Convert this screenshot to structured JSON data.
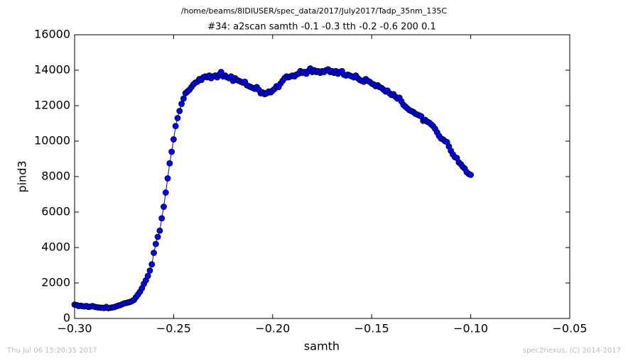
{
  "chart_data": {
    "type": "line",
    "header": "/home/beams/8IDIUSER/spec_data/2017/July2017/Tadp_35nm_135C",
    "title": "#34: a2scan  samth -0.1 -0.3  tth -0.2 -0.6  200 0.1",
    "xlabel": "samth",
    "ylabel": "pind3",
    "footer_left": "Thu Jul 06 15:20:35 2017",
    "footer_right": "spec2nexus, (C) 2014-2017",
    "color": "#0000ff",
    "marker": "circle",
    "xlim": [
      -0.3,
      -0.05
    ],
    "xticks": [
      {
        "value": -0.3,
        "label": "−0.30"
      },
      {
        "value": -0.25,
        "label": "−0.25"
      },
      {
        "value": -0.2,
        "label": "−0.20"
      },
      {
        "value": -0.15,
        "label": "−0.15"
      },
      {
        "value": -0.1,
        "label": "−0.10"
      },
      {
        "value": -0.05,
        "label": "−0.05"
      }
    ],
    "ylim": [
      0,
      16000
    ],
    "yticks": [
      0,
      2000,
      4000,
      6000,
      8000,
      10000,
      12000,
      14000,
      16000
    ],
    "x": [
      -0.3,
      -0.299,
      -0.298,
      -0.297,
      -0.296,
      -0.295,
      -0.294,
      -0.293,
      -0.292,
      -0.291,
      -0.29,
      -0.289,
      -0.288,
      -0.287,
      -0.286,
      -0.285,
      -0.284,
      -0.283,
      -0.282,
      -0.281,
      -0.28,
      -0.279,
      -0.278,
      -0.277,
      -0.276,
      -0.275,
      -0.274,
      -0.273,
      -0.272,
      -0.271,
      -0.27,
      -0.269,
      -0.268,
      -0.267,
      -0.266,
      -0.265,
      -0.264,
      -0.263,
      -0.262,
      -0.261,
      -0.26,
      -0.259,
      -0.258,
      -0.257,
      -0.256,
      -0.255,
      -0.254,
      -0.253,
      -0.252,
      -0.251,
      -0.25,
      -0.249,
      -0.248,
      -0.247,
      -0.246,
      -0.245,
      -0.244,
      -0.243,
      -0.242,
      -0.241,
      -0.24,
      -0.239,
      -0.238,
      -0.237,
      -0.236,
      -0.235,
      -0.234,
      -0.233,
      -0.232,
      -0.231,
      -0.23,
      -0.229,
      -0.228,
      -0.227,
      -0.226,
      -0.225,
      -0.224,
      -0.223,
      -0.222,
      -0.221,
      -0.22,
      -0.219,
      -0.218,
      -0.217,
      -0.216,
      -0.215,
      -0.214,
      -0.213,
      -0.212,
      -0.211,
      -0.21,
      -0.209,
      -0.208,
      -0.207,
      -0.206,
      -0.205,
      -0.204,
      -0.203,
      -0.202,
      -0.201,
      -0.2,
      -0.199,
      -0.198,
      -0.197,
      -0.196,
      -0.195,
      -0.194,
      -0.193,
      -0.192,
      -0.191,
      -0.19,
      -0.189,
      -0.188,
      -0.187,
      -0.186,
      -0.185,
      -0.184,
      -0.183,
      -0.182,
      -0.181,
      -0.18,
      -0.179,
      -0.178,
      -0.177,
      -0.176,
      -0.175,
      -0.174,
      -0.173,
      -0.172,
      -0.171,
      -0.17,
      -0.169,
      -0.168,
      -0.167,
      -0.166,
      -0.165,
      -0.164,
      -0.163,
      -0.162,
      -0.161,
      -0.16,
      -0.159,
      -0.158,
      -0.157,
      -0.156,
      -0.155,
      -0.154,
      -0.153,
      -0.152,
      -0.151,
      -0.15,
      -0.149,
      -0.148,
      -0.147,
      -0.146,
      -0.145,
      -0.144,
      -0.143,
      -0.142,
      -0.141,
      -0.14,
      -0.139,
      -0.138,
      -0.137,
      -0.136,
      -0.135,
      -0.134,
      -0.133,
      -0.132,
      -0.131,
      -0.13,
      -0.129,
      -0.128,
      -0.127,
      -0.126,
      -0.125,
      -0.124,
      -0.123,
      -0.122,
      -0.121,
      -0.12,
      -0.119,
      -0.118,
      -0.117,
      -0.116,
      -0.115,
      -0.114,
      -0.113,
      -0.112,
      -0.111,
      -0.11,
      -0.109,
      -0.108,
      -0.107,
      -0.106,
      -0.105,
      -0.104,
      -0.103,
      -0.102,
      -0.101,
      -0.1
    ],
    "values": [
      780,
      760,
      700,
      720,
      690,
      680,
      700,
      650,
      670,
      700,
      660,
      640,
      620,
      610,
      600,
      590,
      650,
      580,
      600,
      620,
      640,
      680,
      720,
      750,
      800,
      850,
      870,
      900,
      930,
      980,
      1050,
      1200,
      1350,
      1500,
      1700,
      1950,
      2150,
      2400,
      2700,
      3050,
      3700,
      4200,
      4600,
      4950,
      5650,
      6300,
      7100,
      7900,
      8750,
      9400,
      10100,
      10850,
      11300,
      11700,
      12100,
      12400,
      12700,
      12800,
      12900,
      13050,
      13200,
      13300,
      13350,
      13500,
      13450,
      13600,
      13650,
      13600,
      13700,
      13550,
      13650,
      13700,
      13600,
      13750,
      13900,
      13650,
      13700,
      13600,
      13550,
      13650,
      13400,
      13550,
      13450,
      13400,
      13350,
      13300,
      13350,
      13150,
      13100,
      13050,
      13000,
      12950,
      13050,
      12900,
      12700,
      12750,
      12650,
      12700,
      12800,
      12750,
      12850,
      12950,
      13100,
      13050,
      13250,
      13400,
      13550,
      13650,
      13600,
      13650,
      13700,
      13650,
      13750,
      13800,
      13950,
      13850,
      13900,
      13800,
      13950,
      14100,
      13900,
      14000,
      13900,
      13950,
      13850,
      13950,
      13900,
      14000,
      14050,
      13900,
      13950,
      13850,
      13950,
      13800,
      13900,
      13950,
      13750,
      13700,
      13750,
      13700,
      13650,
      13600,
      13700,
      13550,
      13450,
      13400,
      13350,
      13500,
      13400,
      13350,
      13250,
      13200,
      13100,
      13150,
      13050,
      13000,
      12900,
      12800,
      12850,
      12700,
      12600,
      12650,
      12500,
      12400,
      12450,
      12250,
      12050,
      11950,
      11850,
      11750,
      11700,
      11650,
      11550,
      11500,
      11450,
      11400,
      11150,
      11200,
      11100,
      11050,
      10950,
      10850,
      10700,
      10500,
      10300,
      10150,
      10100,
      10000,
      9950,
      9700,
      9450,
      9250,
      9100,
      9050,
      8800,
      8700,
      8550,
      8450,
      8250,
      8150,
      8100
    ]
  }
}
